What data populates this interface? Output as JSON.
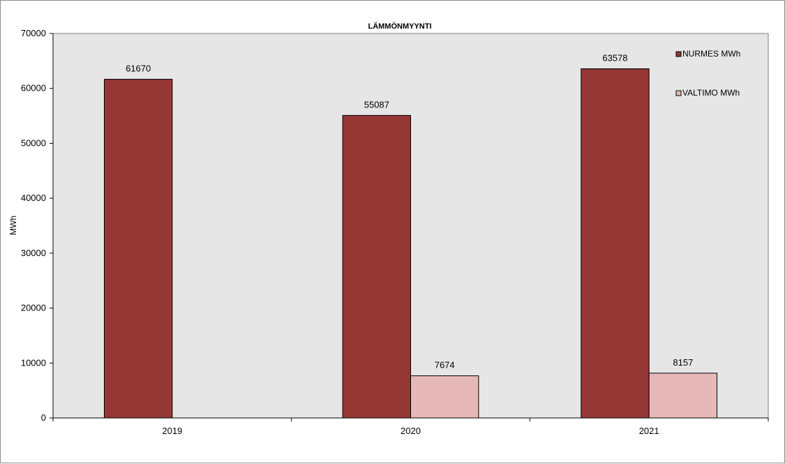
{
  "chart_data": {
    "type": "bar",
    "title": "LÄMMÖNMYYNTI",
    "ylabel": "MWh",
    "xlabel": "",
    "categories": [
      "2019",
      "2020",
      "2021"
    ],
    "series": [
      {
        "name": "NURMES MWh",
        "values": [
          61670,
          55087,
          63578
        ],
        "color": "#953735"
      },
      {
        "name": "VALTIMO MWh",
        "values": [
          null,
          7674,
          8157
        ],
        "color": "#e6b9b8"
      }
    ],
    "ylim": [
      0,
      70000
    ],
    "yticks": [
      0,
      10000,
      20000,
      30000,
      40000,
      50000,
      60000,
      70000
    ],
    "grid": false,
    "legend": "top-right",
    "plot_background": "#e6e6e6"
  }
}
